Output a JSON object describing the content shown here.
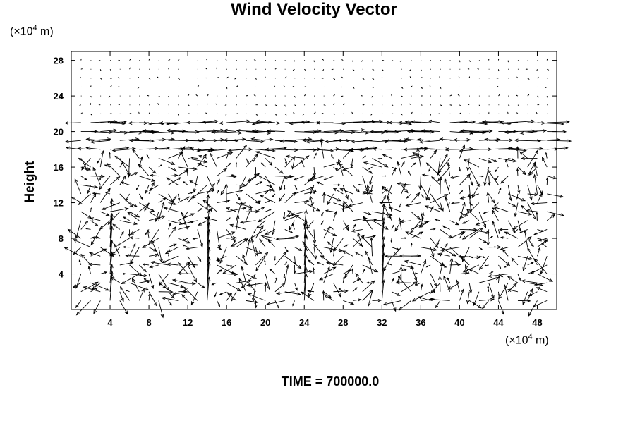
{
  "chart_data": {
    "type": "vector_field",
    "title": "Wind Velocity Vector",
    "ylabel": "Height",
    "xunit": {
      "prefix": "(×10",
      "exp": "4",
      "suffix": " m)"
    },
    "yunit": {
      "prefix": "(×10",
      "exp": "4",
      "suffix": " m)"
    },
    "xlim": [
      0,
      50
    ],
    "ylim": [
      0,
      29
    ],
    "xticks": [
      4,
      8,
      12,
      16,
      20,
      24,
      28,
      32,
      36,
      40,
      44,
      48
    ],
    "yticks": [
      4,
      8,
      12,
      16,
      20,
      24,
      28
    ],
    "grid": false,
    "vector_grid": {
      "dx": 1,
      "dy": 1
    },
    "footer_label": "TIME = 700000.0"
  },
  "footer": {
    "text": "TIME = 700000.0"
  }
}
